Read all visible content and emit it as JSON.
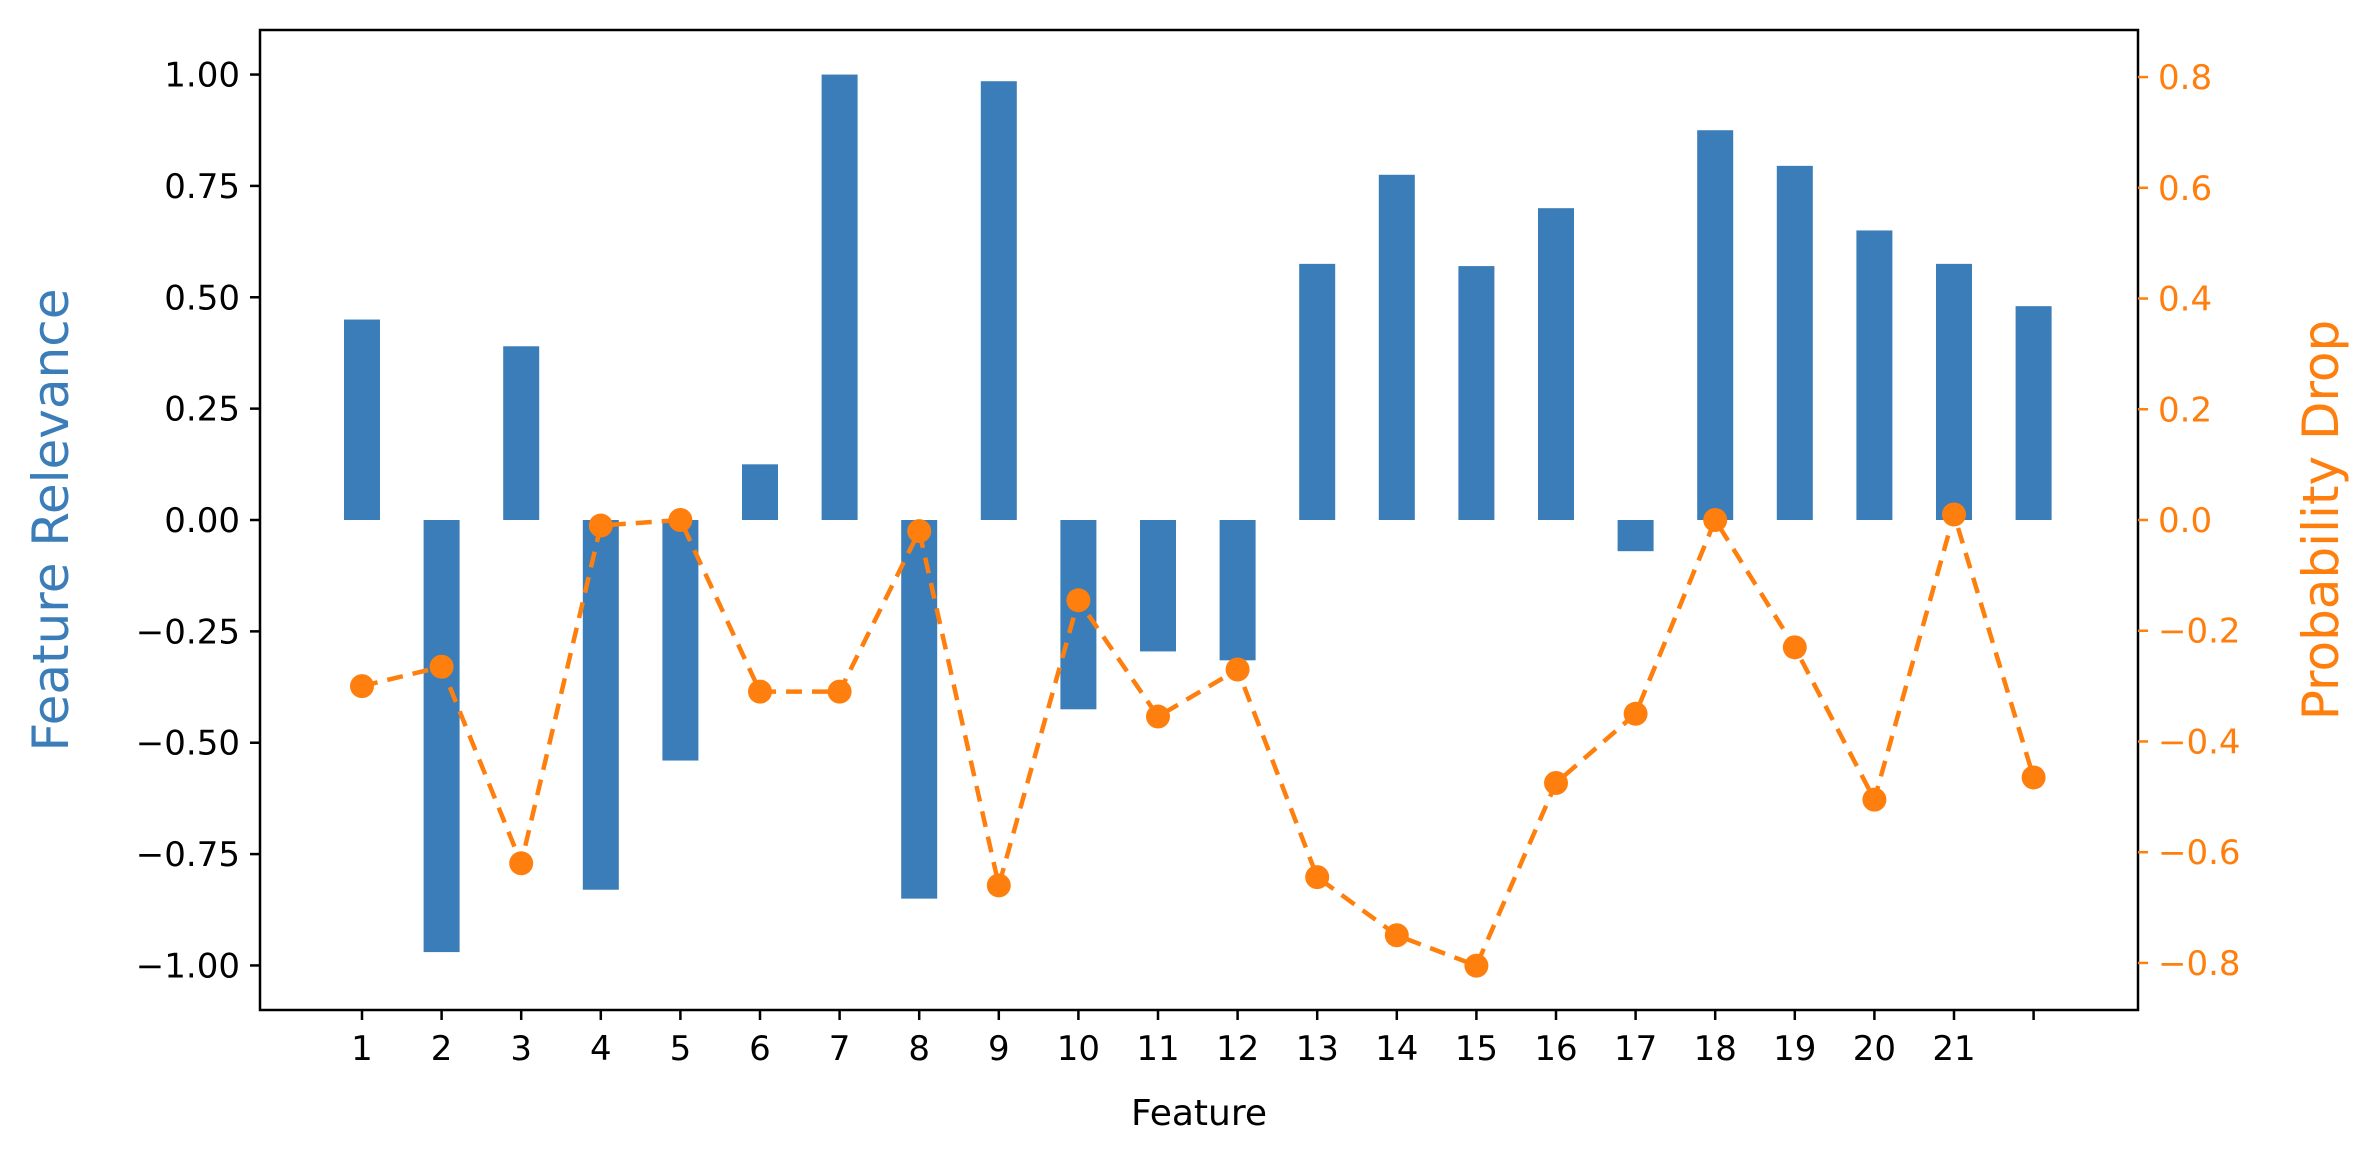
{
  "chart_data": {
    "type": "bar+line",
    "categories": [
      "1",
      "2",
      "3",
      "4",
      "5",
      "6",
      "7",
      "8",
      "9",
      "10",
      "11",
      "12",
      "13",
      "14",
      "15",
      "16",
      "17",
      "18",
      "19",
      "20",
      "21",
      ""
    ],
    "xlabel": "Feature",
    "bars": {
      "axis": "left",
      "ylabel": "Feature Relevance",
      "ylim": [
        -1.1,
        1.1
      ],
      "yticks": [
        -1.0,
        -0.75,
        -0.5,
        -0.25,
        0.0,
        0.25,
        0.5,
        0.75,
        1.0
      ],
      "ytick_labels": [
        "−1.00",
        "−0.75",
        "−0.50",
        "−0.25",
        "0.00",
        "0.25",
        "0.50",
        "0.75",
        "1.00"
      ],
      "values": [
        0.45,
        -0.97,
        0.39,
        -0.83,
        -0.54,
        0.125,
        1.0,
        -0.85,
        0.985,
        -0.425,
        -0.295,
        -0.315,
        0.575,
        0.775,
        0.57,
        0.7,
        -0.07,
        0.875,
        0.795,
        0.65,
        0.575,
        0.48
      ]
    },
    "line": {
      "axis": "right",
      "ylabel": "Probability Drop",
      "ylim": [
        -0.885,
        0.885
      ],
      "yticks": [
        -0.8,
        -0.6,
        -0.4,
        -0.2,
        0.0,
        0.2,
        0.4,
        0.6,
        0.8
      ],
      "ytick_labels": [
        "−0.8",
        "−0.6",
        "−0.4",
        "−0.2",
        "0.0",
        "0.2",
        "0.4",
        "0.6",
        "0.8"
      ],
      "style": "dashed with circle markers",
      "values": [
        -0.3,
        -0.265,
        -0.62,
        -0.01,
        0.0,
        -0.31,
        -0.31,
        -0.02,
        -0.66,
        -0.145,
        -0.355,
        -0.27,
        -0.645,
        -0.75,
        -0.805,
        -0.475,
        -0.35,
        0.0,
        -0.23,
        -0.505,
        0.01,
        -0.465
      ]
    },
    "colors": {
      "bars": "#3a7db8",
      "line": "#ff7f0e",
      "axis": "#000000"
    },
    "grid": false
  }
}
